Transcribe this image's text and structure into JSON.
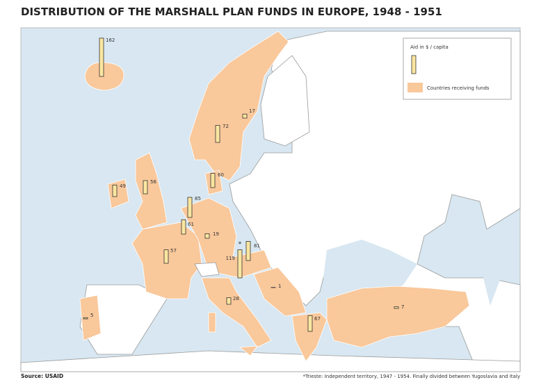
{
  "header": {
    "title": "DISTRIBUTION OF THE MARSHALL PLAN FUNDS IN EUROPE, 1948 - 1951"
  },
  "legend": {
    "bar_label": "Aid in $ / capita",
    "area_label": "Countries receiving funds"
  },
  "colors": {
    "funded": "#f9c89b",
    "bar": "#fbe6a0"
  },
  "markers": [
    {
      "value": 162
    },
    {
      "value": 17
    },
    {
      "value": 72
    },
    {
      "value": 60
    },
    {
      "value": 49
    },
    {
      "value": 56
    },
    {
      "value": 85
    },
    {
      "value": 61
    },
    {
      "value": 19
    },
    {
      "value": 57
    },
    {
      "value": 81
    },
    {
      "value": 119
    },
    {
      "value": 1
    },
    {
      "value": 28
    },
    {
      "value": 5
    },
    {
      "value": 67
    },
    {
      "value": 7
    }
  ],
  "trieste_marker": "*",
  "footer": {
    "source": "Source: USAID",
    "note": "*Trieste: Independent territory, 1947 - 1954. Finally divided between Yugoslavia and Italy"
  }
}
